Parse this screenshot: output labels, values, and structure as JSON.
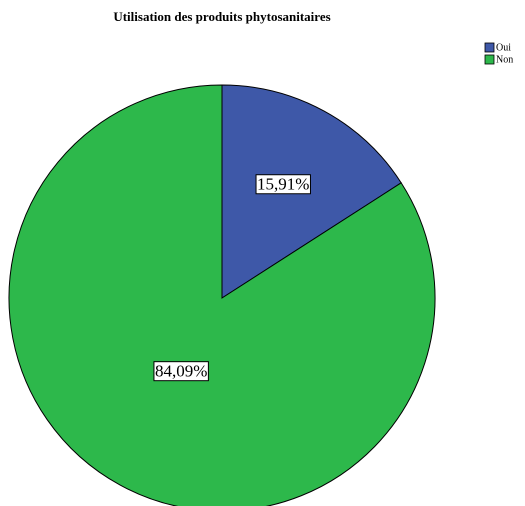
{
  "chart_data": {
    "type": "pie",
    "title": "Utilisation des produits phytosanitaires",
    "categories": [
      "Oui",
      "Non"
    ],
    "values": [
      15.91,
      84.09
    ],
    "value_labels": [
      "15,91%",
      "84,09%"
    ],
    "colors": [
      "#3e58a8",
      "#2db84b"
    ],
    "legend": "top-right"
  }
}
